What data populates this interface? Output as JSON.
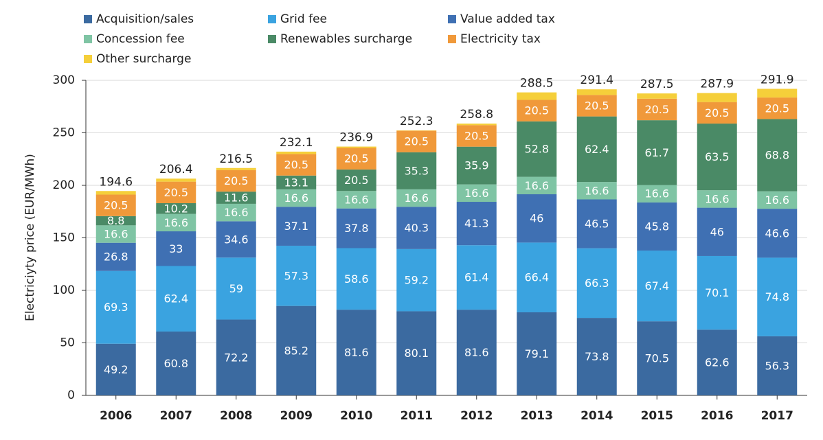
{
  "chart_data": {
    "type": "stacked_bar",
    "y_label": "Electriciyty price (EUR/MWh)",
    "categories": [
      "2006",
      "2007",
      "2008",
      "2009",
      "2010",
      "2011",
      "2012",
      "2013",
      "2014",
      "2015",
      "2016",
      "2017"
    ],
    "series": [
      {
        "name": "Acquisition/sales",
        "color": "#3b6aa0",
        "values": [
          49.2,
          60.8,
          72.2,
          85.2,
          81.6,
          80.1,
          81.6,
          79.1,
          73.8,
          70.5,
          62.6,
          56.3
        ]
      },
      {
        "name": "Grid fee",
        "color": "#3aa3e0",
        "values": [
          69.3,
          62.4,
          59,
          57.3,
          58.6,
          59.2,
          61.4,
          66.4,
          66.3,
          67.4,
          70.1,
          74.8
        ]
      },
      {
        "name": "Value added tax",
        "color": "#3f70b3",
        "values": [
          26.8,
          33,
          34.6,
          37.1,
          37.8,
          40.3,
          41.3,
          46,
          46.5,
          45.8,
          46,
          46.6
        ]
      },
      {
        "name": "Concession fee",
        "color": "#7fc4a4",
        "values": [
          16.6,
          16.6,
          16.6,
          16.6,
          16.6,
          16.6,
          16.6,
          16.6,
          16.6,
          16.6,
          16.6,
          16.6
        ]
      },
      {
        "name": "Renewables surcharge",
        "color": "#4a8a66",
        "values": [
          8.8,
          10.2,
          11.6,
          13.1,
          20.5,
          35.3,
          35.9,
          52.8,
          62.4,
          61.7,
          63.5,
          68.8
        ]
      },
      {
        "name": "Electricity tax",
        "color": "#f0993a",
        "values": [
          20.5,
          20.5,
          20.5,
          20.5,
          20.5,
          20.5,
          20.5,
          20.5,
          20.5,
          20.5,
          20.5,
          20.5
        ]
      },
      {
        "name": "Other surcharge",
        "color": "#f5cf3a",
        "data_labels": false,
        "values": [
          3.4,
          2.9,
          2.0,
          2.3,
          1.3,
          0.3,
          1.5,
          7.1,
          5.3,
          5.0,
          8.6,
          8.3
        ]
      }
    ],
    "totals": [
      194.6,
      206.4,
      216.5,
      232.1,
      236.9,
      252.3,
      258.8,
      288.5,
      291.4,
      287.5,
      287.9,
      291.9
    ],
    "ylim": [
      0,
      300
    ],
    "yticks": [
      0,
      50,
      100,
      150,
      200,
      250,
      300
    ],
    "grid": true
  }
}
